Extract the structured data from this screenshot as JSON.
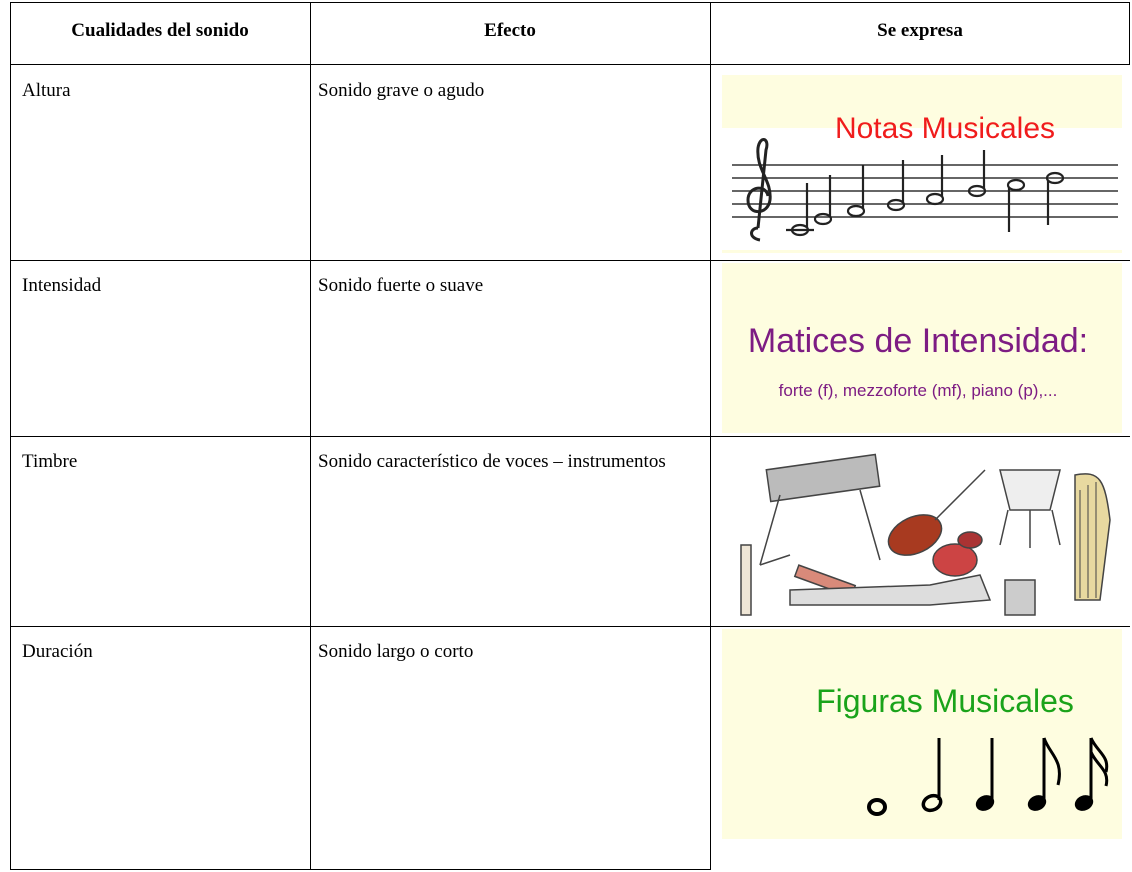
{
  "table": {
    "header": [
      "Cualidades del sonido",
      "Efecto",
      "Se expresa"
    ],
    "rows": [
      {
        "quality": "Altura",
        "effect": "Sonido grave o agudo",
        "image_title": "Notas Musicales"
      },
      {
        "quality": "Intensidad",
        "effect": "Sonido fuerte o suave",
        "image_title": "Matices de Intensidad:",
        "image_subtitle": "forte (f), mezzoforte (mf), piano (p),..."
      },
      {
        "quality": "Timbre",
        "effect": "Sonido característico de voces – instrumentos"
      },
      {
        "quality": "Duración",
        "effect": "Sonido largo o corto",
        "image_title": "Figuras Musicales"
      }
    ]
  }
}
